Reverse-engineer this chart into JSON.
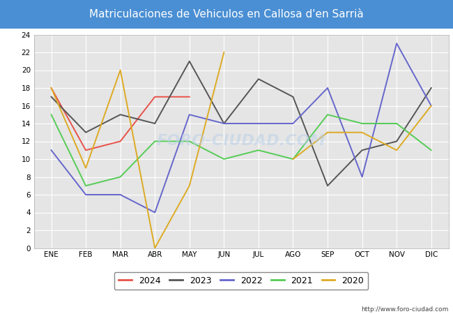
{
  "title": "Matriculaciones de Vehiculos en Callosa d'en Sarrià",
  "title_bg_color": "#4a8fd4",
  "title_text_color": "white",
  "months": [
    "ENE",
    "FEB",
    "MAR",
    "ABR",
    "MAY",
    "JUN",
    "JUL",
    "AGO",
    "SEP",
    "OCT",
    "NOV",
    "DIC"
  ],
  "series": {
    "2024": {
      "color": "#e8524a",
      "data": [
        18,
        11,
        12,
        17,
        17,
        null,
        null,
        null,
        null,
        null,
        null,
        null
      ]
    },
    "2023": {
      "color": "#555555",
      "data": [
        17,
        13,
        15,
        14,
        21,
        14,
        19,
        17,
        7,
        11,
        12,
        18
      ]
    },
    "2022": {
      "color": "#6666cc",
      "data": [
        11,
        6,
        6,
        4,
        15,
        14,
        14,
        14,
        18,
        8,
        23,
        16
      ]
    },
    "2021": {
      "color": "#55cc55",
      "data": [
        15,
        7,
        8,
        12,
        12,
        10,
        11,
        10,
        15,
        14,
        14,
        11
      ]
    },
    "2020": {
      "color": "#ddaa22",
      "data": [
        18,
        9,
        20,
        0,
        7,
        22,
        null,
        10,
        13,
        13,
        11,
        16
      ]
    }
  },
  "ylim": [
    0,
    24
  ],
  "yticks": [
    0,
    2,
    4,
    6,
    8,
    10,
    12,
    14,
    16,
    18,
    20,
    22,
    24
  ],
  "legend_order": [
    "2024",
    "2023",
    "2022",
    "2021",
    "2020"
  ],
  "bg_plot": "#e5e5e5",
  "grid_color": "white",
  "footer_url": "http://www.foro-ciudad.com"
}
